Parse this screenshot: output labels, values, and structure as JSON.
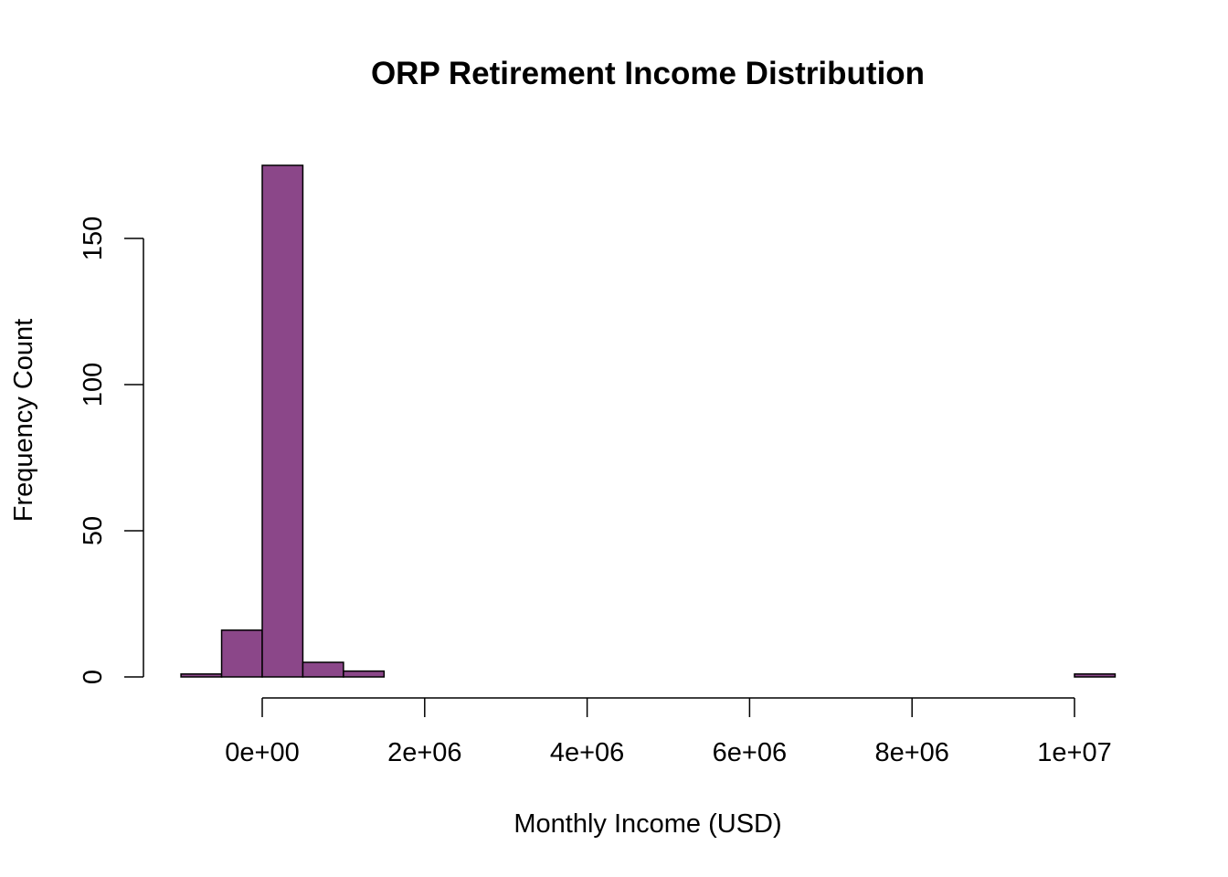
{
  "chart_data": {
    "type": "bar",
    "title": "ORP Retirement Income Distribution",
    "xlabel": "Monthly Income (USD)",
    "ylabel": "Frequency Count",
    "bin_width": 500000,
    "bins": [
      {
        "start": -1000000,
        "end": -500000,
        "count": 1
      },
      {
        "start": -500000,
        "end": 0,
        "count": 16
      },
      {
        "start": 0,
        "end": 500000,
        "count": 175
      },
      {
        "start": 500000,
        "end": 1000000,
        "count": 5
      },
      {
        "start": 1000000,
        "end": 1500000,
        "count": 2
      },
      {
        "start": 1500000,
        "end": 2000000,
        "count": 0
      },
      {
        "start": 2000000,
        "end": 2500000,
        "count": 0
      },
      {
        "start": 2500000,
        "end": 3000000,
        "count": 0
      },
      {
        "start": 3000000,
        "end": 3500000,
        "count": 0
      },
      {
        "start": 3500000,
        "end": 4000000,
        "count": 0
      },
      {
        "start": 4000000,
        "end": 4500000,
        "count": 0
      },
      {
        "start": 4500000,
        "end": 5000000,
        "count": 0
      },
      {
        "start": 5000000,
        "end": 5500000,
        "count": 0
      },
      {
        "start": 5500000,
        "end": 6000000,
        "count": 0
      },
      {
        "start": 6000000,
        "end": 6500000,
        "count": 0
      },
      {
        "start": 6500000,
        "end": 7000000,
        "count": 0
      },
      {
        "start": 7000000,
        "end": 7500000,
        "count": 0
      },
      {
        "start": 7500000,
        "end": 8000000,
        "count": 0
      },
      {
        "start": 8000000,
        "end": 8500000,
        "count": 0
      },
      {
        "start": 8500000,
        "end": 9000000,
        "count": 0
      },
      {
        "start": 9000000,
        "end": 9500000,
        "count": 0
      },
      {
        "start": 9500000,
        "end": 10000000,
        "count": 0
      },
      {
        "start": 10000000,
        "end": 10500000,
        "count": 1
      }
    ],
    "x_ticks": [
      {
        "value": 0,
        "label": "0e+00"
      },
      {
        "value": 2000000,
        "label": "2e+06"
      },
      {
        "value": 4000000,
        "label": "4e+06"
      },
      {
        "value": 6000000,
        "label": "6e+06"
      },
      {
        "value": 8000000,
        "label": "8e+06"
      },
      {
        "value": 10000000,
        "label": "1e+07"
      }
    ],
    "y_ticks": [
      {
        "value": 0,
        "label": "0"
      },
      {
        "value": 50,
        "label": "50"
      },
      {
        "value": 100,
        "label": "100"
      },
      {
        "value": 150,
        "label": "150"
      }
    ],
    "xlim": [
      -1000000,
      10500000
    ],
    "ylim": [
      0,
      175
    ],
    "grid": false,
    "legend": "none",
    "colors": {
      "bar_fill": "#8B4789",
      "bar_stroke": "#000000",
      "axis": "#000000"
    }
  }
}
